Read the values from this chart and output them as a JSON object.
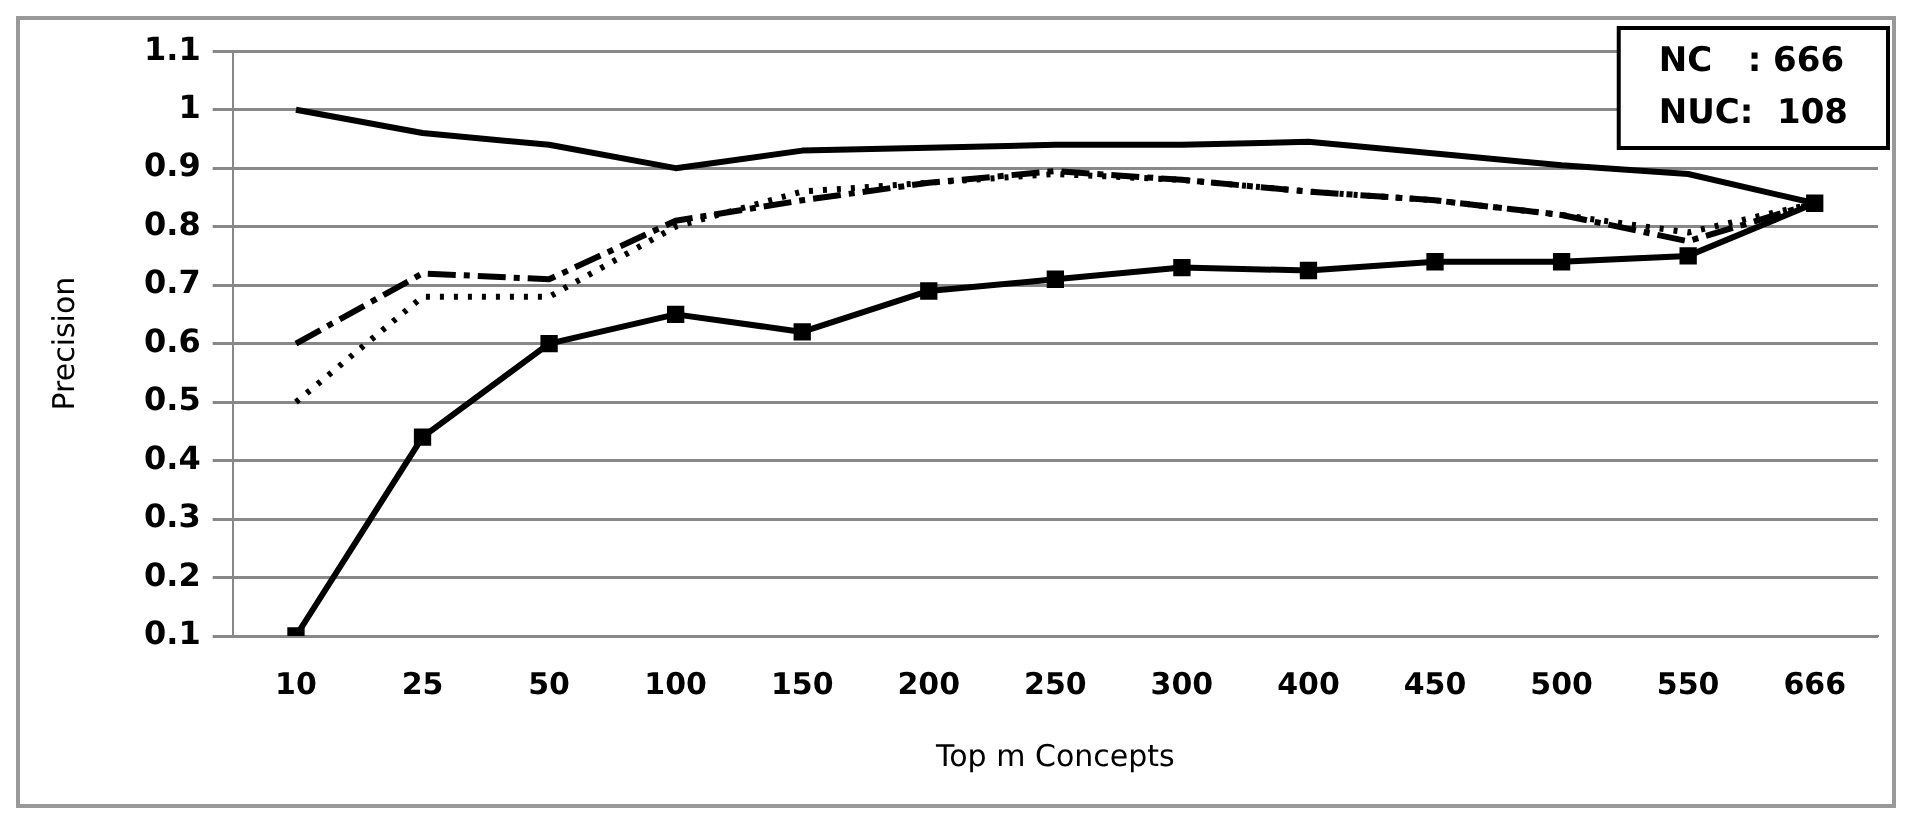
{
  "chart_data": {
    "type": "line",
    "xlabel": "Top m Concepts",
    "ylabel": "Precision",
    "categories": [
      "10",
      "25",
      "50",
      "100",
      "150",
      "200",
      "250",
      "300",
      "400",
      "450",
      "500",
      "550",
      "666"
    ],
    "ylim": [
      0.1,
      1.1
    ],
    "yticks": [
      0.1,
      0.2,
      0.3,
      0.4,
      0.5,
      0.6,
      0.7,
      0.8,
      0.9,
      1,
      1.1
    ],
    "grid": "y",
    "legend": false,
    "marker": "none",
    "annotations": [
      "NC   : 666",
      "NUC:  108"
    ],
    "series": [
      {
        "color": "#000000",
        "line_style": "solid",
        "values": [
          1,
          0.96,
          0.94,
          0.9,
          0.93,
          0.935,
          0.94,
          0.94,
          0.945,
          0.925,
          0.905,
          0.89,
          0.84
        ]
      },
      {
        "color": "#000000",
        "line_style": "dashed",
        "values": [
          0.6,
          0.72,
          0.71,
          0.81,
          0.845,
          0.875,
          0.895,
          0.88,
          0.86,
          0.845,
          0.82,
          0.775,
          0.84
        ]
      },
      {
        "color": "#000000",
        "line_style": "dotted",
        "values": [
          0.5,
          0.68,
          0.68,
          0.8,
          0.86,
          0.875,
          0.89,
          0.88,
          0.86,
          0.845,
          0.82,
          0.79,
          0.84
        ]
      },
      {
        "color": "#000000",
        "line_style": "solid",
        "marker": "square",
        "values": [
          0.1,
          0.44,
          0.6,
          0.65,
          0.62,
          0.69,
          0.71,
          0.73,
          0.725,
          0.74,
          0.74,
          0.75,
          0.84
        ]
      }
    ]
  }
}
